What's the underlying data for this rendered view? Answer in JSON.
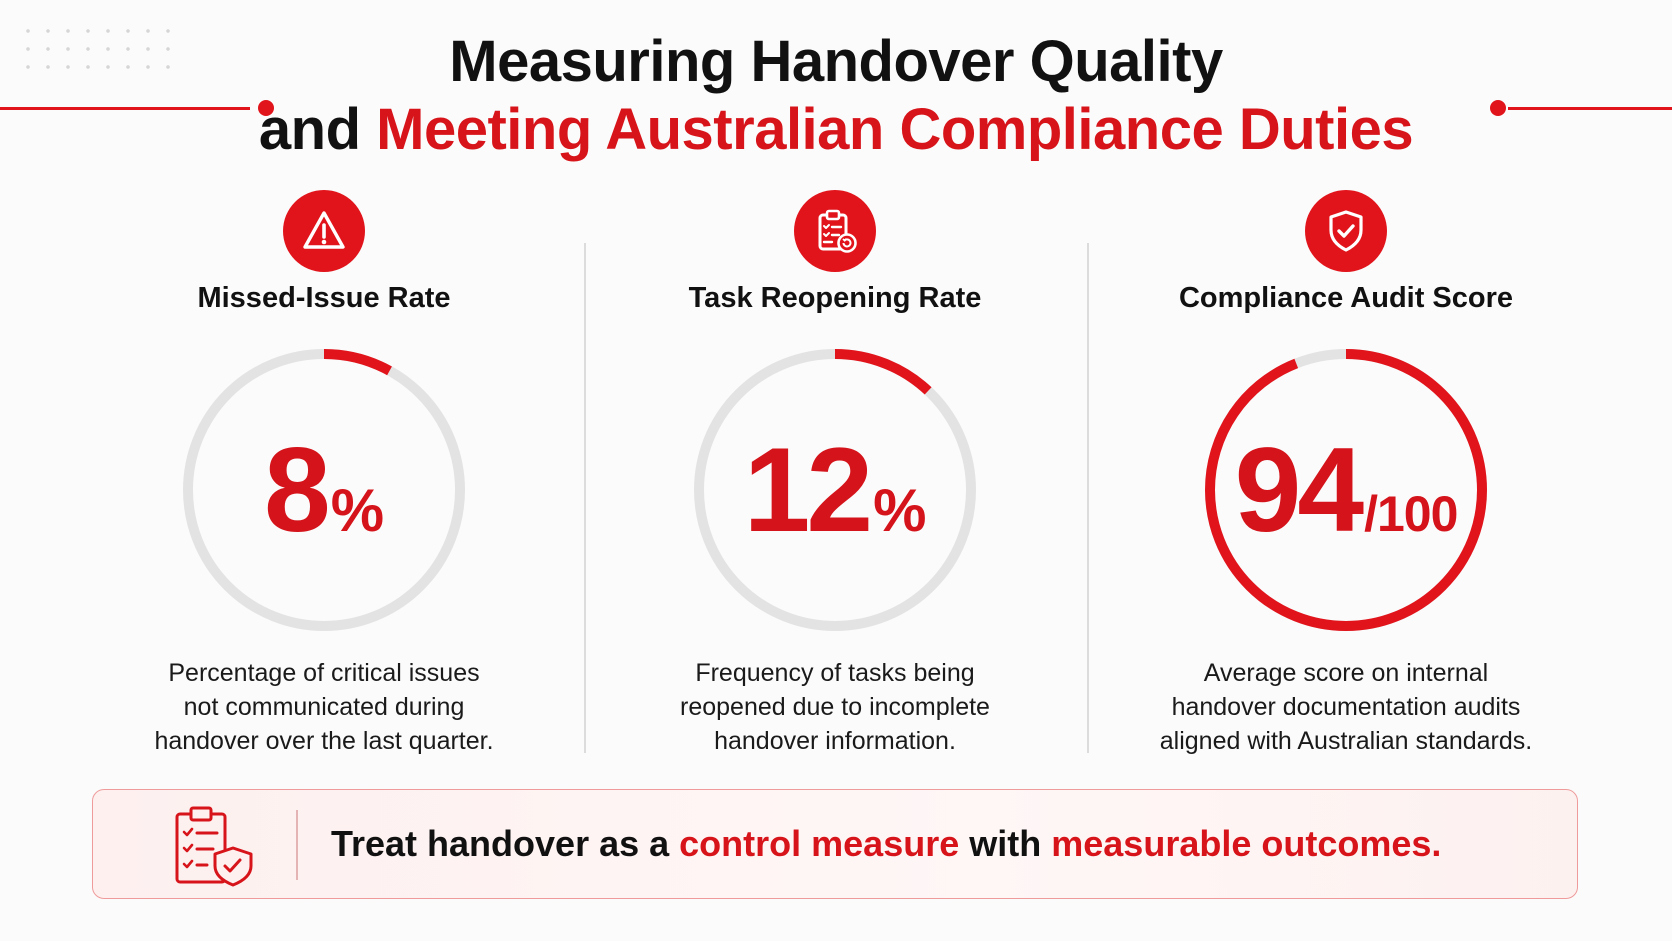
{
  "title": {
    "line1": "Measuring Handover Quality",
    "line2_prefix": "and",
    "line2_accent": "Meeting Australian Compliance Duties"
  },
  "colors": {
    "accent": "#e1141b",
    "track": "#e3e3e3"
  },
  "chart_data": [
    {
      "type": "gauge",
      "title": "Missed-Issue Rate",
      "value": 8,
      "max": 100,
      "value_label": "8",
      "unit_label": "%",
      "description": [
        "Percentage of critical issues",
        "not communicated during",
        "handover over the last quarter."
      ],
      "icon": "warning-triangle-icon"
    },
    {
      "type": "gauge",
      "title": "Task Reopening Rate",
      "value": 12,
      "max": 100,
      "value_label": "12",
      "unit_label": "%",
      "description": [
        "Frequency of tasks being",
        "reopened due to incomplete",
        "handover information."
      ],
      "icon": "clipboard-refresh-icon"
    },
    {
      "type": "gauge",
      "title": "Compliance Audit Score",
      "value": 94,
      "max": 100,
      "value_label": "94",
      "unit_label": "/100",
      "description": [
        "Average score on internal",
        "handover documentation audits",
        "aligned with Australian standards."
      ],
      "icon": "shield-check-icon"
    }
  ],
  "banner": {
    "icon": "checklist-shield-icon",
    "part1": "Treat handover as a ",
    "accent1": "control measure",
    "part2": " with ",
    "accent2": "measurable outcomes."
  }
}
